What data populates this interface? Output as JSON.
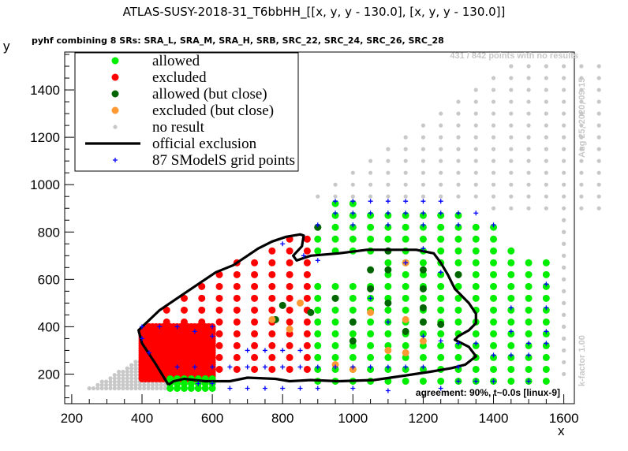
{
  "title": "ATLAS-SUSY-2018-31_T6bbHH_[[x, y, y - 130.0], [x, y, y - 130.0]]",
  "subtitle": "pyhf combining 8 SRs: SRA_L, SRA_M, SRA_H, SRB, SRC_22, SRC_24, SRC_26, SRC_28",
  "no_results_note": "431 / 842 points with no results",
  "timestamp": "Aug 25, 2020, 09:15",
  "kfactor": "k-factor 1.00",
  "agreement": "agreement: 90%, t~0.0s [linux-9]",
  "colors": {
    "allowed": "#00ee00",
    "excluded": "#ff0000",
    "allowed_close": "#006400",
    "excluded_close": "#ff9933",
    "no_result": "#c8c8c8",
    "official": "#000000",
    "grid": "#0000ff"
  },
  "chart_data": {
    "type": "scatter",
    "xlabel": "x",
    "ylabel": "y",
    "xlim": [
      180,
      1630
    ],
    "ylim": [
      75,
      1560
    ],
    "xticks": [
      200,
      400,
      600,
      800,
      1000,
      1200,
      1400,
      1600
    ],
    "yticks": [
      200,
      400,
      600,
      800,
      1000,
      1200,
      1400
    ],
    "legend": {
      "placement": "top-left",
      "entries": [
        {
          "label": "allowed",
          "type": "allowed"
        },
        {
          "label": "excluded",
          "type": "excluded"
        },
        {
          "label": "allowed (but close)",
          "type": "allowed_close"
        },
        {
          "label": "excluded (but close)",
          "type": "excluded_close"
        },
        {
          "label": "no result",
          "type": "no_result"
        },
        {
          "label": "official exclusion",
          "type": "official"
        },
        {
          "label": "87 SModelS grid points",
          "type": "grid"
        }
      ]
    },
    "official_exclusion": [
      [
        475,
        155
      ],
      [
        440,
        240
      ],
      [
        400,
        330
      ],
      [
        390,
        385
      ],
      [
        450,
        470
      ],
      [
        530,
        550
      ],
      [
        610,
        630
      ],
      [
        660,
        660
      ],
      [
        700,
        700
      ],
      [
        730,
        730
      ],
      [
        770,
        760
      ],
      [
        810,
        780
      ],
      [
        850,
        790
      ],
      [
        860,
        785
      ],
      [
        855,
        740
      ],
      [
        830,
        700
      ],
      [
        840,
        680
      ],
      [
        880,
        700
      ],
      [
        960,
        710
      ],
      [
        1040,
        725
      ],
      [
        1100,
        725
      ],
      [
        1180,
        725
      ],
      [
        1230,
        710
      ],
      [
        1250,
        670
      ],
      [
        1270,
        620
      ],
      [
        1290,
        560
      ],
      [
        1330,
        500
      ],
      [
        1350,
        455
      ],
      [
        1350,
        415
      ],
      [
        1330,
        385
      ],
      [
        1300,
        360
      ],
      [
        1290,
        345
      ],
      [
        1330,
        315
      ],
      [
        1350,
        275
      ],
      [
        1320,
        240
      ],
      [
        1280,
        225
      ],
      [
        1220,
        210
      ],
      [
        1130,
        190
      ],
      [
        1060,
        175
      ],
      [
        960,
        170
      ],
      [
        880,
        175
      ],
      [
        820,
        170
      ],
      [
        780,
        180
      ],
      [
        700,
        185
      ],
      [
        650,
        170
      ],
      [
        580,
        170
      ],
      [
        520,
        180
      ],
      [
        490,
        170
      ],
      [
        475,
        155
      ]
    ],
    "excluded_region": {
      "x_range": [
        420,
        880
      ],
      "y_floor": 220,
      "upper_edge": [
        [
          400,
          380
        ],
        [
          450,
          470
        ],
        [
          500,
          510
        ],
        [
          550,
          550
        ],
        [
          600,
          620
        ],
        [
          700,
          700
        ],
        [
          800,
          780
        ],
        [
          850,
          790
        ]
      ],
      "right_edge": [
        [
          850,
          750
        ],
        [
          900,
          200
        ]
      ]
    },
    "allowed_region": {
      "x_range": [
        900,
        1560
      ],
      "y_floor": 170,
      "upper_edge": [
        [
          900,
          830
        ],
        [
          950,
          930
        ],
        [
          1300,
          880
        ],
        [
          1400,
          830
        ],
        [
          1450,
          760
        ],
        [
          1500,
          680
        ],
        [
          1560,
          680
        ]
      ]
    },
    "allowed_close_points": [
      [
        900,
        820
      ],
      [
        1050,
        640
      ],
      [
        1100,
        720
      ],
      [
        1200,
        480
      ],
      [
        1200,
        420
      ],
      [
        1200,
        560
      ],
      [
        1100,
        500
      ],
      [
        1050,
        560
      ],
      [
        1150,
        380
      ],
      [
        1000,
        420
      ],
      [
        950,
        520
      ],
      [
        1100,
        640
      ],
      [
        1200,
        640
      ],
      [
        880,
        460
      ],
      [
        800,
        490
      ],
      [
        780,
        430
      ],
      [
        1000,
        340
      ],
      [
        1250,
        410
      ],
      [
        1300,
        620
      ]
    ],
    "excluded_close_points": [
      [
        1150,
        670
      ],
      [
        1150,
        430
      ],
      [
        1050,
        460
      ],
      [
        950,
        240
      ],
      [
        1100,
        300
      ],
      [
        1150,
        290
      ],
      [
        1200,
        340
      ],
      [
        850,
        500
      ],
      [
        820,
        390
      ],
      [
        770,
        430
      ],
      [
        1000,
        220
      ]
    ],
    "no_result_region": {
      "triangle_lower_left": [
        [
          250,
          140
        ],
        [
          400,
          140
        ],
        [
          480,
          340
        ]
      ],
      "upper_right_band": [
        [
          800,
          830
        ],
        [
          1700,
          1500
        ]
      ]
    },
    "smodels_grid_points": [
      [
        560,
        160
      ],
      [
        600,
        160
      ],
      [
        650,
        140
      ],
      [
        700,
        140
      ],
      [
        750,
        140
      ],
      [
        800,
        140
      ],
      [
        850,
        140
      ],
      [
        900,
        140
      ],
      [
        1000,
        140
      ],
      [
        1100,
        130
      ],
      [
        1250,
        140
      ],
      [
        1300,
        170
      ],
      [
        1350,
        170
      ],
      [
        1400,
        170
      ],
      [
        1500,
        170
      ],
      [
        1500,
        330
      ],
      [
        1550,
        330
      ],
      [
        1400,
        280
      ],
      [
        1300,
        230
      ],
      [
        1200,
        230
      ],
      [
        1150,
        230
      ],
      [
        1100,
        230
      ],
      [
        1050,
        230
      ],
      [
        1000,
        230
      ],
      [
        950,
        230
      ],
      [
        900,
        230
      ],
      [
        850,
        230
      ],
      [
        800,
        230
      ],
      [
        750,
        230
      ],
      [
        700,
        230
      ],
      [
        650,
        230
      ],
      [
        600,
        230
      ],
      [
        550,
        230
      ],
      [
        500,
        230
      ],
      [
        750,
        300
      ],
      [
        800,
        300
      ],
      [
        850,
        300
      ],
      [
        700,
        300
      ],
      [
        600,
        360
      ],
      [
        600,
        400
      ],
      [
        550,
        380
      ],
      [
        500,
        400
      ],
      [
        450,
        400
      ],
      [
        400,
        400
      ],
      [
        400,
        350
      ],
      [
        420,
        290
      ],
      [
        900,
        830
      ],
      [
        1000,
        830
      ],
      [
        1100,
        830
      ],
      [
        1200,
        830
      ],
      [
        1300,
        830
      ],
      [
        1400,
        830
      ],
      [
        1150,
        670
      ],
      [
        1200,
        730
      ],
      [
        1250,
        630
      ],
      [
        1050,
        520
      ],
      [
        1100,
        420
      ],
      [
        1200,
        360
      ],
      [
        1250,
        340
      ],
      [
        1000,
        930
      ],
      [
        950,
        880
      ],
      [
        1000,
        880
      ],
      [
        1050,
        880
      ],
      [
        1100,
        880
      ],
      [
        1150,
        880
      ],
      [
        1200,
        880
      ],
      [
        1250,
        880
      ],
      [
        1300,
        880
      ],
      [
        1350,
        880
      ],
      [
        950,
        930
      ],
      [
        1050,
        930
      ],
      [
        1100,
        930
      ],
      [
        1150,
        930
      ],
      [
        1200,
        930
      ],
      [
        1250,
        930
      ],
      [
        860,
        700
      ],
      [
        800,
        750
      ],
      [
        900,
        680
      ],
      [
        1300,
        330
      ],
      [
        1350,
        330
      ],
      [
        1450,
        280
      ],
      [
        1500,
        280
      ],
      [
        1550,
        380
      ],
      [
        1550,
        480
      ],
      [
        1550,
        580
      ],
      [
        1450,
        380
      ],
      [
        1450,
        480
      ]
    ]
  }
}
